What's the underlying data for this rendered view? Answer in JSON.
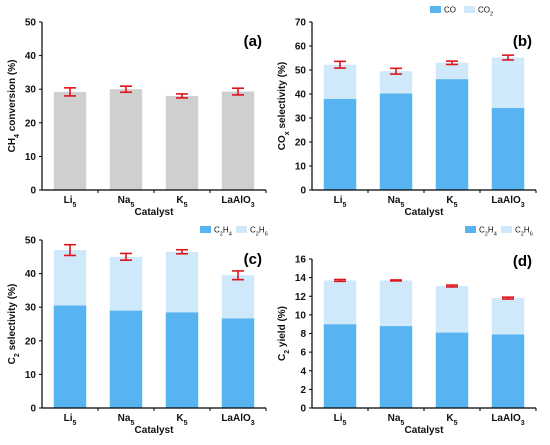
{
  "colors": {
    "gray_bar": "#cfcfcf",
    "dark_blue": "#58b4f0",
    "light_blue": "#cfe9fb",
    "error_bar": "#e0151b",
    "axis": "#000000"
  },
  "chart_data": [
    {
      "type": "bar",
      "panel_label": "(a)",
      "categories": [
        "Li5",
        "Na5",
        "K5",
        "LaAlO3"
      ],
      "xlabel": "Catalyst",
      "ylabel": "CH4 conversion (%)",
      "ylim": [
        0,
        50
      ],
      "yticks": [
        0,
        10,
        20,
        30,
        40,
        50
      ],
      "series": [
        {
          "name": "",
          "values": [
            29.2,
            30.0,
            28.0,
            29.3
          ],
          "errors": [
            1.2,
            0.9,
            0.6,
            1.0
          ],
          "color": "#cfcfcf"
        }
      ],
      "legend": []
    },
    {
      "type": "bar",
      "stacked": true,
      "panel_label": "(b)",
      "categories": [
        "Li5",
        "Na5",
        "K5",
        "LaAlO3"
      ],
      "xlabel": "Catalyst",
      "ylabel": "COx selectivity (%)",
      "ylim": [
        0,
        70
      ],
      "yticks": [
        0,
        10,
        20,
        30,
        40,
        50,
        60,
        70
      ],
      "series": [
        {
          "name": "CO",
          "values": [
            38,
            40.2,
            46.2,
            34.2
          ],
          "color": "#58b4f0"
        },
        {
          "name": "CO2",
          "values": [
            14.2,
            9.3,
            6.8,
            21.0
          ],
          "color": "#cfe9fb"
        }
      ],
      "errors": [
        1.4,
        1.2,
        0.7,
        1.0
      ],
      "legend": [
        "CO",
        "CO2"
      ],
      "legend_position": "top-right"
    },
    {
      "type": "bar",
      "stacked": true,
      "panel_label": "(c)",
      "categories": [
        "Li5",
        "Na5",
        "K5",
        "LaAlO3"
      ],
      "xlabel": "Catalyst",
      "ylabel": "C2 selectivity (%)",
      "ylim": [
        0,
        50
      ],
      "yticks": [
        0,
        10,
        20,
        30,
        40,
        50
      ],
      "series": [
        {
          "name": "C2H4",
          "values": [
            30.5,
            29.0,
            28.5,
            26.7
          ],
          "color": "#58b4f0"
        },
        {
          "name": "C2H6",
          "values": [
            16.5,
            16.0,
            18.0,
            12.8
          ],
          "color": "#cfe9fb"
        }
      ],
      "errors": [
        1.6,
        1.0,
        0.6,
        1.3
      ],
      "legend": [
        "C2H4",
        "C2H6"
      ],
      "legend_position": "top-left"
    },
    {
      "type": "bar",
      "stacked": true,
      "panel_label": "(d)",
      "categories": [
        "Li5",
        "Na5",
        "K5",
        "LaAlO3"
      ],
      "xlabel": "Catalyst",
      "ylabel": "C2 yield (%)",
      "ylim": [
        0,
        16
      ],
      "yticks": [
        0,
        2,
        4,
        6,
        8,
        10,
        12,
        14,
        16
      ],
      "series": [
        {
          "name": "C2H4",
          "values": [
            9.0,
            8.8,
            8.1,
            7.9
          ],
          "color": "#58b4f0"
        },
        {
          "name": "C2H6",
          "values": [
            4.7,
            4.9,
            5.0,
            3.9
          ],
          "color": "#cfe9fb"
        }
      ],
      "errors": [
        0.1,
        0.05,
        0.1,
        0.1
      ],
      "legend": [
        "C2H4",
        "C2H6"
      ],
      "legend_position": "top-right"
    }
  ]
}
